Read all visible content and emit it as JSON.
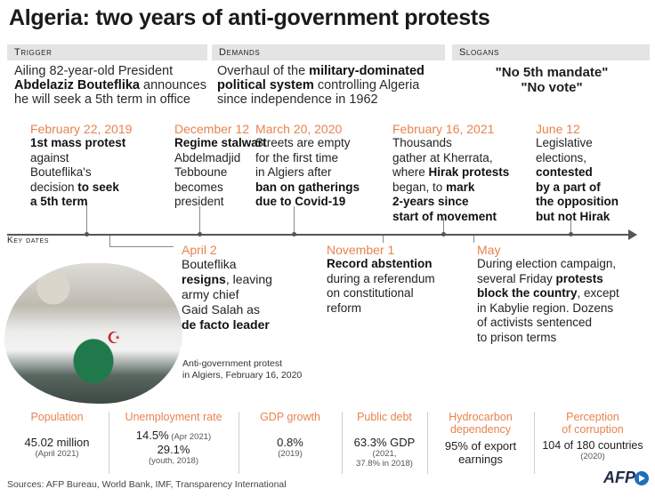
{
  "title": "Algeria: two years of anti-government protests",
  "header": {
    "trigger": {
      "label": "Trigger",
      "t1": "Ailing 82-year-old President",
      "t2b": "Abdelaziz Bouteflika",
      "t2": " announces",
      "t3": "he will seek a 5th term in office"
    },
    "demands": {
      "label": "Demands",
      "t1": "Overhaul of the ",
      "t1b": "military-dominated",
      "t2b": "political system",
      "t2": " controlling Algeria",
      "t3": "since independence in 1962"
    },
    "slogans": {
      "label": "Slogans",
      "s1": "\"No 5th mandate\"",
      "s2": "\"No vote\""
    }
  },
  "key_dates_label": "Key dates",
  "events": {
    "e1": {
      "date": "February 22, 2019",
      "l1b": "1st mass protest",
      "l2": "against",
      "l3": "Bouteflika's",
      "l4": "decision ",
      "l4b": "to seek",
      "l5b": "a 5th term"
    },
    "e2": {
      "date": "December 12",
      "l1b": "Regime stalwart",
      "l2": "Abdelmadjid",
      "l3": "Tebboune",
      "l4": "becomes",
      "l5": "president"
    },
    "e3": {
      "date": "March 20, 2020",
      "l1": "Streets are empty",
      "l2": "for the first time",
      "l3": "in Algiers after",
      "l4b": "ban on gatherings",
      "l5b": "due to Covid-19"
    },
    "e4": {
      "date": "February 16, 2021",
      "l1": "Thousands",
      "l2": "gather at Kherrata,",
      "l3": "where ",
      "l3b": "Hirak protests",
      "l4": "began, to ",
      "l4b": "mark",
      "l5b": "2-years since",
      "l6b": "start of movement"
    },
    "e5": {
      "date": "June 12",
      "l1": "Legislative",
      "l2": "elections,",
      "l3b": "contested",
      "l4b": "by a part of",
      "l5b": "the opposition",
      "l6b": "but not Hirak"
    },
    "e6": {
      "date": "April 2",
      "l1": "Bouteflika",
      "l2b": "resigns",
      "l2": ", leaving",
      "l3": "army chief",
      "l4": "Gaid Salah as",
      "l5b": "de facto leader"
    },
    "e7": {
      "date": "November 1",
      "l1b": "Record abstention",
      "l2": "during a referendum",
      "l3": "on constitutional",
      "l4": "reform"
    },
    "e8": {
      "date": "May",
      "l1": "During election campaign,",
      "l2": "several Friday ",
      "l2b": "protests",
      "l3b": "block the country",
      "l3": ", except",
      "l4": "in Kabylie region. Dozens",
      "l5": "of activists sentenced",
      "l6": "to prison terms"
    }
  },
  "photo_caption": {
    "l1": "Anti-government protest",
    "l2": "in Algiers, February 16, 2020"
  },
  "stats": {
    "population": {
      "label": "Population",
      "value": "45.02 million",
      "sub": "(April 2021)"
    },
    "unemployment": {
      "label": "Unemployment rate",
      "value1": "14.5%",
      "sub1": " (Apr 2021)",
      "value2": "29.1%",
      "sub2": "(youth, 2018)"
    },
    "gdp": {
      "label": "GDP growth",
      "value": "0.8%",
      "sub": "(2019)"
    },
    "debt": {
      "label": "Public debt",
      "value": "63.3% GDP",
      "sub1": "(2021,",
      "sub2": "37.8% in 2018)"
    },
    "hydrocarbon": {
      "label1": "Hydrocarbon",
      "label2": "dependency",
      "value1": "95% of export",
      "value2": "earnings"
    },
    "corruption": {
      "label1": "Perception",
      "label2": "of corruption",
      "value": "104 of 180 countries",
      "sub": "(2020)"
    }
  },
  "sources": "Sources: AFP Bureau, World Bank, IMF, Transparency International",
  "logo": "AFP",
  "colors": {
    "accent": "#e8834e",
    "axis": "#555555",
    "header_bg": "#e4e4e4"
  }
}
